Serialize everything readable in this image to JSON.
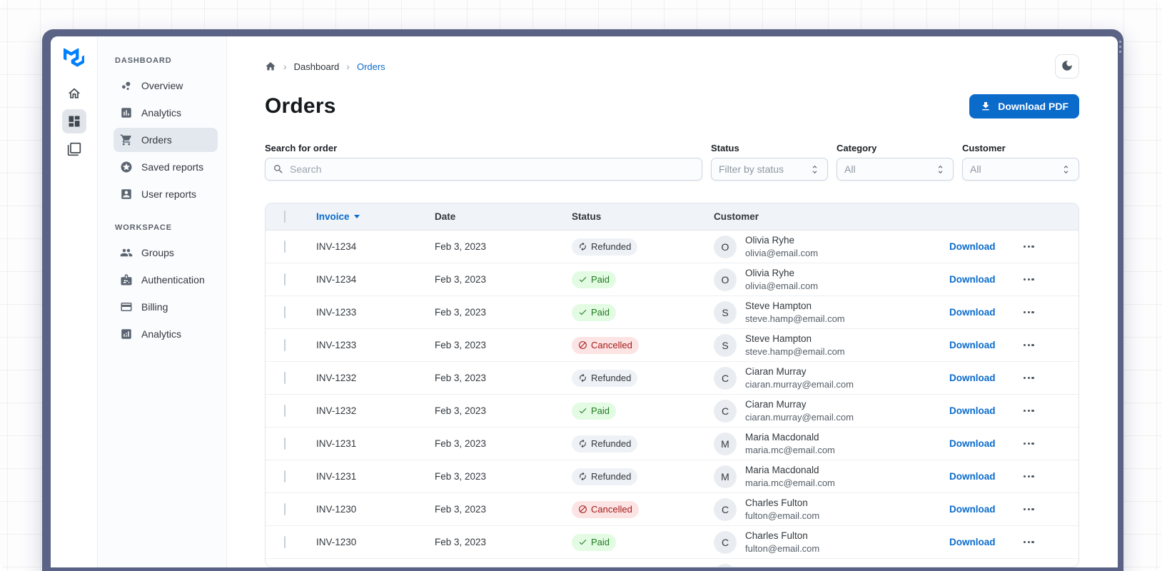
{
  "colors": {
    "primary": "#0B6BCB",
    "frame": "#5A6286",
    "logo_blue": "#007FFF",
    "header_bg": "#F0F4F8",
    "selected_nav_bg": "#E3E8EF",
    "paid_bg": "#E3FBE3",
    "paid_fg": "#1F7A1F",
    "refunded_bg": "#EEF2F6",
    "refunded_fg": "#32383E",
    "cancelled_bg": "#FCE4E4",
    "cancelled_fg": "#A51818"
  },
  "rail": {
    "logo_icon": "mui-logo",
    "items": [
      {
        "icon": "home-icon",
        "selected": false
      },
      {
        "icon": "dashboard-icon",
        "selected": true
      },
      {
        "icon": "stack-icon",
        "selected": false
      }
    ]
  },
  "sidebar": {
    "sections": [
      {
        "label": "DASHBOARD",
        "items": [
          {
            "label": "Overview",
            "icon": "bubble-chart-icon",
            "selected": false
          },
          {
            "label": "Analytics",
            "icon": "bar-chart-icon",
            "selected": false
          },
          {
            "label": "Orders",
            "icon": "shopping-cart-icon",
            "selected": true
          },
          {
            "label": "Saved reports",
            "icon": "star-circle-icon",
            "selected": false
          },
          {
            "label": "User reports",
            "icon": "person-card-icon",
            "selected": false
          }
        ]
      },
      {
        "label": "WORKSPACE",
        "items": [
          {
            "label": "Groups",
            "icon": "people-icon",
            "selected": false
          },
          {
            "label": "Authentication",
            "icon": "badge-icon",
            "selected": false
          },
          {
            "label": "Billing",
            "icon": "credit-card-icon",
            "selected": false
          },
          {
            "label": "Analytics",
            "icon": "analytics-icon",
            "selected": false
          }
        ]
      }
    ]
  },
  "breadcrumb": {
    "home_icon": "home-icon",
    "dashboard": "Dashboard",
    "current": "Orders"
  },
  "page": {
    "title": "Orders",
    "download_button": "Download PDF"
  },
  "filters": {
    "search": {
      "label": "Search for order",
      "placeholder": "Search"
    },
    "status": {
      "label": "Status",
      "value": "Filter by status"
    },
    "category": {
      "label": "Category",
      "value": "All"
    },
    "customer": {
      "label": "Customer",
      "value": "All"
    }
  },
  "table": {
    "columns": [
      "Invoice",
      "Date",
      "Status",
      "Customer"
    ],
    "sorted_by": "Invoice",
    "download_label": "Download",
    "rows": [
      {
        "invoice": "INV-1234",
        "date": "Feb 3, 2023",
        "status": "Refunded",
        "customer": {
          "initial": "O",
          "name": "Olivia Ryhe",
          "email": "olivia@email.com"
        }
      },
      {
        "invoice": "INV-1234",
        "date": "Feb 3, 2023",
        "status": "Paid",
        "customer": {
          "initial": "O",
          "name": "Olivia Ryhe",
          "email": "olivia@email.com"
        }
      },
      {
        "invoice": "INV-1233",
        "date": "Feb 3, 2023",
        "status": "Paid",
        "customer": {
          "initial": "S",
          "name": "Steve Hampton",
          "email": "steve.hamp@email.com"
        }
      },
      {
        "invoice": "INV-1233",
        "date": "Feb 3, 2023",
        "status": "Cancelled",
        "customer": {
          "initial": "S",
          "name": "Steve Hampton",
          "email": "steve.hamp@email.com"
        }
      },
      {
        "invoice": "INV-1232",
        "date": "Feb 3, 2023",
        "status": "Refunded",
        "customer": {
          "initial": "C",
          "name": "Ciaran Murray",
          "email": "ciaran.murray@email.com"
        }
      },
      {
        "invoice": "INV-1232",
        "date": "Feb 3, 2023",
        "status": "Paid",
        "customer": {
          "initial": "C",
          "name": "Ciaran Murray",
          "email": "ciaran.murray@email.com"
        }
      },
      {
        "invoice": "INV-1231",
        "date": "Feb 3, 2023",
        "status": "Refunded",
        "customer": {
          "initial": "M",
          "name": "Maria Macdonald",
          "email": "maria.mc@email.com"
        }
      },
      {
        "invoice": "INV-1231",
        "date": "Feb 3, 2023",
        "status": "Refunded",
        "customer": {
          "initial": "M",
          "name": "Maria Macdonald",
          "email": "maria.mc@email.com"
        }
      },
      {
        "invoice": "INV-1230",
        "date": "Feb 3, 2023",
        "status": "Cancelled",
        "customer": {
          "initial": "C",
          "name": "Charles Fulton",
          "email": "fulton@email.com"
        }
      },
      {
        "invoice": "INV-1230",
        "date": "Feb 3, 2023",
        "status": "Paid",
        "customer": {
          "initial": "C",
          "name": "Charles Fulton",
          "email": "fulton@email.com"
        }
      },
      {
        "invoice": "",
        "date": "",
        "status": "",
        "customer": {
          "initial": "",
          "name": "",
          "email": ""
        },
        "partial": true
      }
    ]
  }
}
